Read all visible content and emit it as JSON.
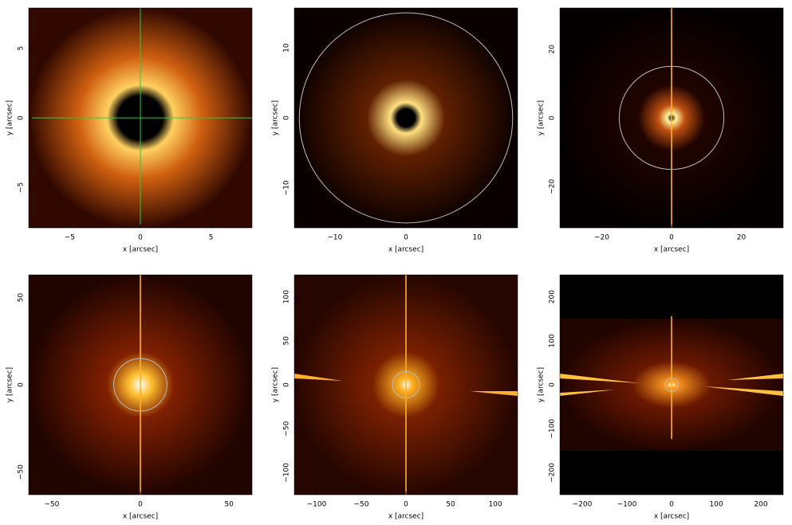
{
  "chart_data": [
    {
      "type": "image",
      "xlabel": "x [arcsec]",
      "ylabel": "y [arcsec]",
      "xlim": [
        -7.9,
        7.9
      ],
      "ylim": [
        -7.9,
        7.9
      ],
      "xticks": [
        {
          "value": -5,
          "label": "−5"
        },
        0,
        5
      ],
      "yticks": [
        {
          "value": -5,
          "label": "−5"
        },
        0,
        5
      ],
      "crosshair": [
        0,
        0
      ]
    },
    {
      "type": "image",
      "xlabel": "x [arcsec]",
      "ylabel": "y [arcsec]",
      "xlim": [
        -15.7,
        15.7
      ],
      "ylim": [
        -15.7,
        15.7
      ],
      "xticks": [
        {
          "value": -10,
          "label": "−10"
        },
        0,
        10
      ],
      "yticks": [
        {
          "value": -10,
          "label": "−10"
        },
        0,
        10
      ],
      "circle_radius": 15
    },
    {
      "type": "image",
      "xlabel": "x [arcsec]",
      "ylabel": "y [arcsec]",
      "xlim": [
        -32,
        32
      ],
      "ylim": [
        -32,
        32
      ],
      "xticks": [
        {
          "value": -20,
          "label": "−20"
        },
        0,
        20
      ],
      "yticks": [
        {
          "value": -20,
          "label": "−20"
        },
        0,
        20
      ],
      "circle_radius": 15
    },
    {
      "type": "image",
      "xlabel": "x [arcsec]",
      "ylabel": "y [arcsec]",
      "xlim": [
        -63,
        63
      ],
      "ylim": [
        -63,
        63
      ],
      "xticks": [
        {
          "value": -50,
          "label": "−50"
        },
        0,
        50
      ],
      "yticks": [
        {
          "value": -50,
          "label": "−50"
        },
        0,
        50
      ],
      "circle_radius": 15
    },
    {
      "type": "image",
      "xlabel": "x [arcsec]",
      "ylabel": "y [arcsec]",
      "xlim": [
        -125,
        125
      ],
      "ylim": [
        -125,
        125
      ],
      "xticks": [
        {
          "value": -100,
          "label": "−100"
        },
        {
          "value": -50,
          "label": "−50"
        },
        0,
        50,
        100
      ],
      "yticks": [
        {
          "value": -100,
          "label": "−100"
        },
        {
          "value": -50,
          "label": "−50"
        },
        0,
        50,
        100
      ],
      "circle_radius": 15
    },
    {
      "type": "image",
      "xlabel": "x [arcsec]",
      "ylabel": "y [arcsec]",
      "xlim": [
        -250,
        250
      ],
      "ylim": [
        -250,
        250
      ],
      "xticks": [
        {
          "value": -200,
          "label": "−200"
        },
        {
          "value": -100,
          "label": "−100"
        },
        0,
        100,
        200
      ],
      "yticks": [
        {
          "value": -200,
          "label": "−200"
        },
        {
          "value": -100,
          "label": "−100"
        },
        0,
        100,
        200
      ],
      "circle_radius": 15
    }
  ]
}
